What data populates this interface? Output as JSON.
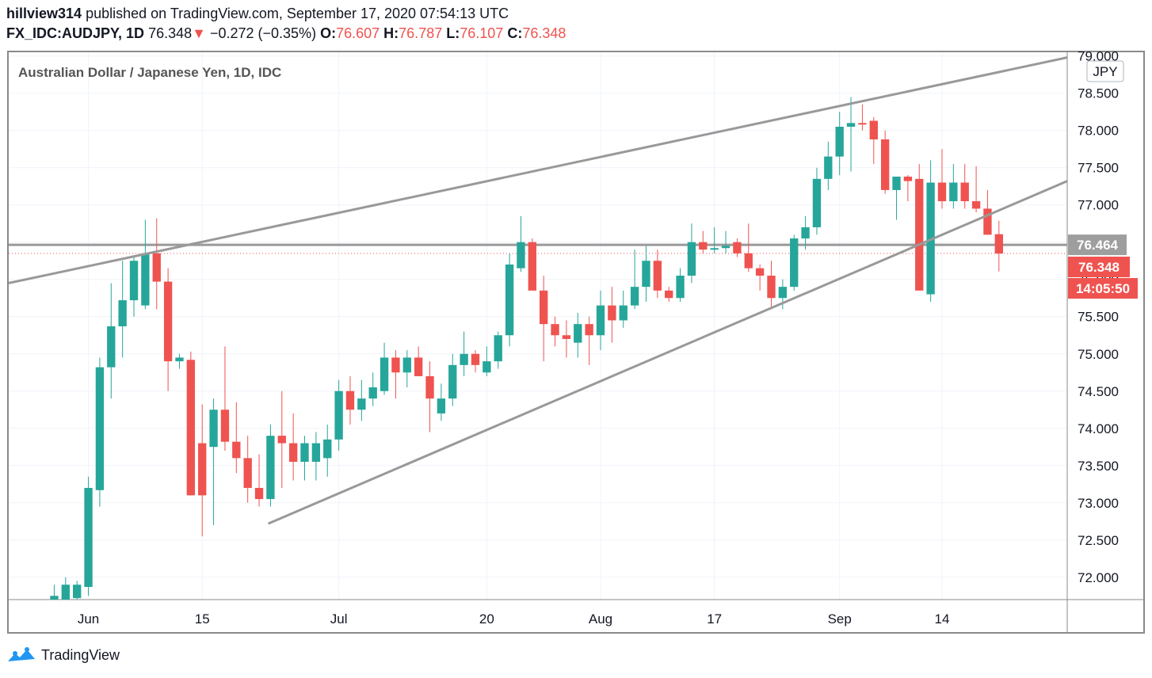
{
  "header": {
    "user": "hillview314",
    "published_text": "published on TradingView.com, September 17, 2020 07:54:13 UTC",
    "symbol": "FX_IDC:AUDJPY, 1D",
    "last": "76.348",
    "change_arrow": "▼",
    "change": "−0.272 (−0.35%)",
    "o_label": "O:",
    "o_value": "76.607",
    "h_label": "H:",
    "h_value": "76.787",
    "l_label": "L:",
    "l_value": "76.107",
    "c_label": "C:",
    "c_value": "76.348"
  },
  "footer": {
    "brand": "TradingView"
  },
  "colors": {
    "up": "#26a69a",
    "down": "#ef5350",
    "trendline": "#999999",
    "hline": "#999999",
    "grid": "#f0f3fa"
  },
  "chart_data": {
    "type": "candlestick",
    "title": "Australian Dollar / Japanese Yen, 1D, IDC",
    "currency_badge": "JPY",
    "ylim": [
      71.7,
      79.05
    ],
    "y_ticks": [
      "72.000",
      "72.500",
      "73.000",
      "73.500",
      "74.000",
      "74.500",
      "75.000",
      "75.500",
      "76.000",
      "76.500",
      "77.000",
      "77.500",
      "78.000",
      "78.500",
      "79.000"
    ],
    "x_labels": [
      {
        "label": "Jun",
        "index": 3
      },
      {
        "label": "15",
        "index": 13
      },
      {
        "label": "Jul",
        "index": 25
      },
      {
        "label": "20",
        "index": 38
      },
      {
        "label": "Aug",
        "index": 48
      },
      {
        "label": "17",
        "index": 58
      },
      {
        "label": "Sep",
        "index": 69
      },
      {
        "label": "14",
        "index": 78
      }
    ],
    "x_domain": [
      -4,
      89
    ],
    "candles": [
      {
        "o": 71.7,
        "h": 71.9,
        "l": 71.6,
        "c": 71.75
      },
      {
        "o": 71.7,
        "h": 72.0,
        "l": 71.6,
        "c": 71.9
      },
      {
        "o": 71.72,
        "h": 71.95,
        "l": 71.6,
        "c": 71.9
      },
      {
        "o": 71.87,
        "h": 73.35,
        "l": 71.75,
        "c": 73.2
      },
      {
        "o": 73.17,
        "h": 74.95,
        "l": 72.95,
        "c": 74.82
      },
      {
        "o": 74.82,
        "h": 75.95,
        "l": 74.4,
        "c": 75.37
      },
      {
        "o": 75.37,
        "h": 76.25,
        "l": 74.95,
        "c": 75.72
      },
      {
        "o": 75.72,
        "h": 76.3,
        "l": 75.5,
        "c": 76.25
      },
      {
        "o": 75.65,
        "h": 76.8,
        "l": 75.6,
        "c": 76.35
      },
      {
        "o": 76.35,
        "h": 76.82,
        "l": 75.6,
        "c": 75.97
      },
      {
        "o": 75.97,
        "h": 76.15,
        "l": 74.5,
        "c": 74.9
      },
      {
        "o": 74.9,
        "h": 75.0,
        "l": 74.8,
        "c": 74.95
      },
      {
        "o": 74.92,
        "h": 75.03,
        "l": 73.1,
        "c": 73.1
      },
      {
        "o": 73.8,
        "h": 74.32,
        "l": 72.55,
        "c": 73.1
      },
      {
        "o": 73.75,
        "h": 74.4,
        "l": 72.7,
        "c": 74.25
      },
      {
        "o": 74.25,
        "h": 75.1,
        "l": 73.7,
        "c": 73.82
      },
      {
        "o": 73.82,
        "h": 74.35,
        "l": 73.4,
        "c": 73.6
      },
      {
        "o": 73.6,
        "h": 73.9,
        "l": 73.0,
        "c": 73.2
      },
      {
        "o": 73.2,
        "h": 73.65,
        "l": 72.95,
        "c": 73.05
      },
      {
        "o": 73.05,
        "h": 74.05,
        "l": 72.95,
        "c": 73.9
      },
      {
        "o": 73.9,
        "h": 74.5,
        "l": 73.2,
        "c": 73.8
      },
      {
        "o": 73.8,
        "h": 74.2,
        "l": 73.3,
        "c": 73.55
      },
      {
        "o": 73.55,
        "h": 73.9,
        "l": 73.3,
        "c": 73.8
      },
      {
        "o": 73.55,
        "h": 73.95,
        "l": 73.3,
        "c": 73.8
      },
      {
        "o": 73.6,
        "h": 74.05,
        "l": 73.35,
        "c": 73.85
      },
      {
        "o": 73.85,
        "h": 74.65,
        "l": 73.7,
        "c": 74.5
      },
      {
        "o": 74.5,
        "h": 74.7,
        "l": 74.05,
        "c": 74.25
      },
      {
        "o": 74.25,
        "h": 74.65,
        "l": 74.1,
        "c": 74.4
      },
      {
        "o": 74.4,
        "h": 74.75,
        "l": 74.3,
        "c": 74.55
      },
      {
        "o": 74.5,
        "h": 75.15,
        "l": 74.45,
        "c": 74.95
      },
      {
        "o": 74.95,
        "h": 75.05,
        "l": 74.4,
        "c": 74.75
      },
      {
        "o": 74.75,
        "h": 75.05,
        "l": 74.55,
        "c": 74.95
      },
      {
        "o": 74.95,
        "h": 75.1,
        "l": 74.7,
        "c": 74.7
      },
      {
        "o": 74.7,
        "h": 74.9,
        "l": 73.95,
        "c": 74.4
      },
      {
        "o": 74.2,
        "h": 74.6,
        "l": 74.1,
        "c": 74.4
      },
      {
        "o": 74.4,
        "h": 75.0,
        "l": 74.3,
        "c": 74.85
      },
      {
        "o": 74.85,
        "h": 75.3,
        "l": 74.7,
        "c": 75.0
      },
      {
        "o": 75.0,
        "h": 75.05,
        "l": 74.75,
        "c": 74.85
      },
      {
        "o": 74.75,
        "h": 75.1,
        "l": 74.7,
        "c": 74.9
      },
      {
        "o": 74.9,
        "h": 75.3,
        "l": 74.8,
        "c": 75.25
      },
      {
        "o": 75.25,
        "h": 76.35,
        "l": 75.1,
        "c": 76.2
      },
      {
        "o": 76.15,
        "h": 76.85,
        "l": 76.1,
        "c": 76.5
      },
      {
        "o": 76.5,
        "h": 76.55,
        "l": 75.85,
        "c": 75.85
      },
      {
        "o": 75.85,
        "h": 76.05,
        "l": 74.9,
        "c": 75.4
      },
      {
        "o": 75.4,
        "h": 75.5,
        "l": 75.1,
        "c": 75.25
      },
      {
        "o": 75.25,
        "h": 75.45,
        "l": 74.95,
        "c": 75.2
      },
      {
        "o": 75.15,
        "h": 75.55,
        "l": 74.95,
        "c": 75.4
      },
      {
        "o": 75.4,
        "h": 75.5,
        "l": 74.85,
        "c": 75.25
      },
      {
        "o": 75.25,
        "h": 75.85,
        "l": 75.05,
        "c": 75.65
      },
      {
        "o": 75.65,
        "h": 75.9,
        "l": 75.15,
        "c": 75.45
      },
      {
        "o": 75.45,
        "h": 75.85,
        "l": 75.35,
        "c": 75.65
      },
      {
        "o": 75.65,
        "h": 76.4,
        "l": 75.6,
        "c": 75.9
      },
      {
        "o": 75.9,
        "h": 76.45,
        "l": 75.7,
        "c": 76.25
      },
      {
        "o": 76.25,
        "h": 76.4,
        "l": 75.75,
        "c": 75.85
      },
      {
        "o": 75.85,
        "h": 75.9,
        "l": 75.7,
        "c": 75.75
      },
      {
        "o": 75.75,
        "h": 76.15,
        "l": 75.7,
        "c": 76.05
      },
      {
        "o": 76.05,
        "h": 76.75,
        "l": 75.95,
        "c": 76.5
      },
      {
        "o": 76.5,
        "h": 76.65,
        "l": 76.35,
        "c": 76.4
      },
      {
        "o": 76.4,
        "h": 76.7,
        "l": 76.35,
        "c": 76.42
      },
      {
        "o": 76.42,
        "h": 76.65,
        "l": 76.35,
        "c": 76.45
      },
      {
        "o": 76.5,
        "h": 76.55,
        "l": 76.3,
        "c": 76.35
      },
      {
        "o": 76.35,
        "h": 76.75,
        "l": 76.1,
        "c": 76.15
      },
      {
        "o": 76.15,
        "h": 76.2,
        "l": 75.85,
        "c": 76.05
      },
      {
        "o": 76.05,
        "h": 76.25,
        "l": 75.6,
        "c": 75.75
      },
      {
        "o": 75.75,
        "h": 76.0,
        "l": 75.6,
        "c": 75.9
      },
      {
        "o": 75.9,
        "h": 76.6,
        "l": 75.85,
        "c": 76.55
      },
      {
        "o": 76.55,
        "h": 76.85,
        "l": 76.4,
        "c": 76.7
      },
      {
        "o": 76.7,
        "h": 77.5,
        "l": 76.6,
        "c": 77.35
      },
      {
        "o": 77.35,
        "h": 77.85,
        "l": 77.2,
        "c": 77.65
      },
      {
        "o": 77.65,
        "h": 78.25,
        "l": 77.4,
        "c": 78.05
      },
      {
        "o": 78.05,
        "h": 78.45,
        "l": 77.45,
        "c": 78.1
      },
      {
        "o": 78.1,
        "h": 78.35,
        "l": 78.0,
        "c": 78.08
      },
      {
        "o": 78.13,
        "h": 78.18,
        "l": 77.55,
        "c": 77.88
      },
      {
        "o": 77.88,
        "h": 78.0,
        "l": 77.15,
        "c": 77.2
      },
      {
        "o": 77.2,
        "h": 77.35,
        "l": 76.8,
        "c": 77.38
      },
      {
        "o": 77.38,
        "h": 77.4,
        "l": 77.05,
        "c": 77.32
      },
      {
        "o": 77.35,
        "h": 77.55,
        "l": 75.85,
        "c": 75.85
      },
      {
        "o": 75.8,
        "h": 77.6,
        "l": 75.7,
        "c": 77.3
      },
      {
        "o": 77.3,
        "h": 77.75,
        "l": 76.95,
        "c": 77.05
      },
      {
        "o": 77.05,
        "h": 77.55,
        "l": 76.95,
        "c": 77.3
      },
      {
        "o": 77.3,
        "h": 77.55,
        "l": 76.95,
        "c": 77.05
      },
      {
        "o": 77.05,
        "h": 77.52,
        "l": 76.9,
        "c": 76.95
      },
      {
        "o": 76.95,
        "h": 77.2,
        "l": 76.6,
        "c": 76.6
      },
      {
        "o": 76.607,
        "h": 76.787,
        "l": 76.107,
        "c": 76.348
      }
    ],
    "trendlines": [
      {
        "from": {
          "i": -4,
          "v": 75.95
        },
        "to": {
          "i": 89,
          "v": 78.98
        }
      },
      {
        "from": {
          "i": 18.8,
          "v": 72.72
        },
        "to": {
          "i": 89,
          "v": 77.32
        }
      }
    ],
    "horizontal_line": {
      "value": 76.464,
      "label": "76.464"
    },
    "last_price": {
      "value": 76.348,
      "label": "76.348",
      "countdown": "14:05:50"
    }
  }
}
